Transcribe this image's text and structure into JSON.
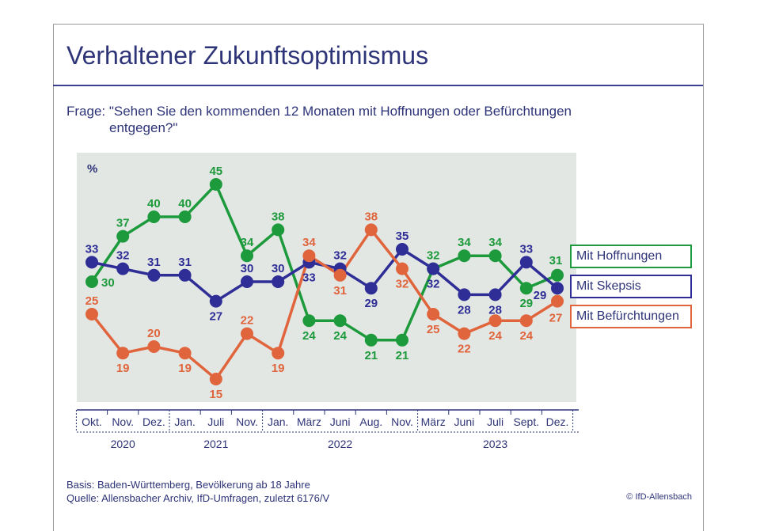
{
  "title": "Verhaltener Zukunftsoptimismus",
  "question": {
    "line1": "Frage: \"Sehen Sie den kommenden 12 Monaten mit Hoffnungen oder Befürchtungen",
    "line2": "entgegen?\""
  },
  "footer": {
    "basis": "Basis: Baden-Württemberg, Bevölkerung ab 18 Jahre",
    "source": "Quelle: Allensbacher Archiv, IfD-Umfragen, zuletzt 6176/V",
    "copyright": "© IfD-Allensbach"
  },
  "colors": {
    "plot_bg": "#e3e7e3",
    "hoffnungen": "#1c9a3c",
    "skepsis": "#2e2e96",
    "befuerchtungen": "#e0643c",
    "text": "#2e3478"
  },
  "chart_data": {
    "type": "line",
    "unit_label": "%",
    "categories": [
      "Okt.",
      "Nov.",
      "Dez.",
      "Jan.",
      "Juli",
      "Nov.",
      "Jan.",
      "März",
      "Juni",
      "Aug.",
      "Nov.",
      "März",
      "Juni",
      "Juli",
      "Sept.",
      "Dez."
    ],
    "years": [
      {
        "label": "2020",
        "from": 0,
        "to": 2
      },
      {
        "label": "2021",
        "from": 3,
        "to": 5
      },
      {
        "label": "2022",
        "from": 6,
        "to": 10
      },
      {
        "label": "2023",
        "from": 11,
        "to": 15
      }
    ],
    "ylim": [
      10,
      50
    ],
    "series": [
      {
        "name": "Mit Hoffnungen",
        "color": "#1c9a3c",
        "values": [
          30,
          37,
          40,
          40,
          45,
          34,
          38,
          24,
          24,
          21,
          21,
          32,
          34,
          34,
          29,
          31
        ]
      },
      {
        "name": "Mit Skepsis",
        "color": "#2e2e96",
        "values": [
          33,
          32,
          31,
          31,
          27,
          30,
          30,
          33,
          32,
          29,
          35,
          32,
          28,
          28,
          33,
          29
        ]
      },
      {
        "name": "Mit Befürchtungen",
        "color": "#e0643c",
        "values": [
          25,
          19,
          20,
          19,
          15,
          22,
          19,
          34,
          31,
          38,
          32,
          25,
          22,
          24,
          24,
          27
        ]
      }
    ],
    "legend": [
      "Mit Hoffnungen",
      "Mit Skepsis",
      "Mit Befürchtungen"
    ],
    "grid": false
  }
}
